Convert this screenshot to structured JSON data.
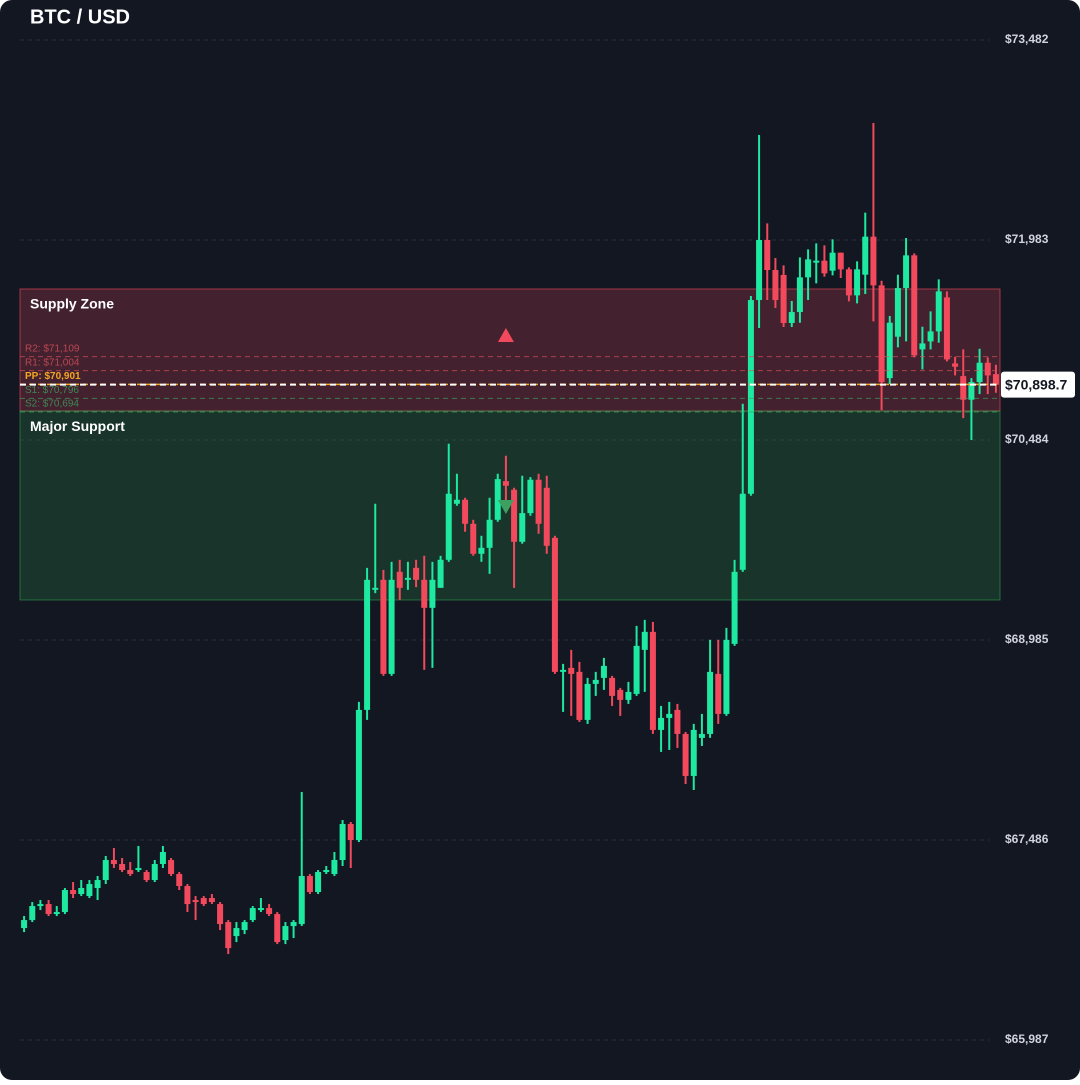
{
  "chart_data": {
    "type": "candlestick",
    "title": "BTC / USD",
    "categories": [
      null,
      null,
      null,
      null,
      null,
      null,
      null,
      null,
      null,
      null,
      null,
      null,
      null,
      null,
      null,
      null,
      null,
      null,
      null,
      null,
      null,
      null,
      null,
      null,
      null,
      null,
      null,
      null,
      null,
      null,
      null,
      null,
      null,
      null,
      null,
      null,
      null,
      null,
      null,
      null,
      null,
      null,
      null,
      null,
      null,
      null,
      null,
      null,
      null,
      null,
      null,
      null,
      null,
      null,
      null,
      null,
      null,
      null,
      null,
      null,
      null,
      null,
      null,
      null,
      null,
      null,
      null,
      null,
      null,
      null,
      null,
      null,
      null,
      null,
      null,
      null,
      null,
      null,
      null,
      null,
      null,
      null,
      null,
      null,
      null,
      null,
      null,
      null,
      null,
      null,
      null,
      null,
      null,
      null,
      null,
      null,
      null,
      null,
      null,
      null,
      null,
      null,
      null,
      null,
      null,
      null,
      null,
      null,
      null,
      null,
      null,
      null,
      null,
      null,
      null,
      null,
      null,
      null,
      null,
      null
    ],
    "open": [
      66826,
      66886,
      66991,
      67006,
      66931,
      66946,
      67111,
      67081,
      67066,
      67126,
      67186,
      67336,
      67306,
      67261,
      67261,
      67246,
      67186,
      67306,
      67336,
      67231,
      67141,
      67036,
      67051,
      67051,
      67006,
      66871,
      66766,
      66811,
      66886,
      66961,
      66976,
      66931,
      66736,
      66841,
      66856,
      67216,
      67096,
      67246,
      67231,
      67336,
      67606,
      67486,
      68461,
      69361,
      69436,
      68731,
      69496,
      69436,
      69526,
      69436,
      69226,
      69376,
      69586,
      70006,
      70036,
      69856,
      69631,
      69676,
      69886,
      70176,
      70111,
      69721,
      69936,
      70186,
      70126,
      69751,
      68746,
      68776,
      68746,
      68386,
      68656,
      68701,
      68701,
      68611,
      68536,
      68581,
      68911,
      69046,
      68311,
      68401,
      68461,
      68281,
      67966,
      68251,
      68281,
      68731,
      68431,
      68956,
      69511,
      70081,
      71533,
      71983,
      71758,
      71721,
      71361,
      71443,
      71703,
      71813,
      71828,
      71753,
      71888,
      71763,
      71568,
      71723,
      72008,
      71643,
      70948,
      71258,
      71623,
      71868,
      71163,
      71223,
      71298,
      71553,
      71058,
      70963,
      70786,
      70918,
      71063,
      70978
    ],
    "high": [
      66916,
      67021,
      67036,
      67036,
      66991,
      67126,
      67171,
      67186,
      67186,
      67216,
      67366,
      67426,
      67351,
      67321,
      67441,
      67261,
      67336,
      67441,
      67351,
      67246,
      67156,
      67066,
      67066,
      67081,
      67021,
      66886,
      66871,
      66886,
      66991,
      67051,
      67006,
      66946,
      66871,
      66886,
      67846,
      67231,
      67261,
      67291,
      67396,
      67636,
      67621,
      68521,
      69526,
      70006,
      69511,
      69571,
      69586,
      69571,
      69586,
      69616,
      69571,
      69616,
      70456,
      70231,
      70051,
      69886,
      69766,
      70051,
      70231,
      70366,
      70126,
      70216,
      70206,
      70231,
      70216,
      69766,
      68806,
      68911,
      68821,
      68701,
      68746,
      68851,
      68716,
      68626,
      68671,
      69091,
      69136,
      69121,
      68491,
      68521,
      68506,
      68296,
      68356,
      68431,
      68986,
      68986,
      69076,
      69586,
      70756,
      71563,
      72770,
      72108,
      71848,
      71793,
      71526,
      71853,
      71913,
      71958,
      71943,
      71988,
      71888,
      71778,
      71823,
      72188,
      72860,
      71678,
      71413,
      71723,
      71998,
      71883,
      71333,
      71448,
      71688,
      71598,
      71108,
      71163,
      70948,
      71168,
      71103,
      71048
    ],
    "low": [
      66796,
      66871,
      66961,
      66916,
      66916,
      66931,
      67051,
      67066,
      67051,
      67036,
      67156,
      67276,
      67246,
      67216,
      67246,
      67171,
      67171,
      67276,
      67216,
      67111,
      66946,
      66886,
      66991,
      67006,
      66811,
      66631,
      66721,
      66781,
      66871,
      66946,
      66916,
      66706,
      66706,
      66751,
      66841,
      67081,
      67081,
      67231,
      67216,
      67291,
      67276,
      67471,
      68386,
      69336,
      68716,
      68716,
      69286,
      69361,
      69381,
      68761,
      68776,
      69376,
      69571,
      69991,
      69796,
      69616,
      69571,
      69481,
      69871,
      69946,
      69376,
      69706,
      69916,
      69781,
      69631,
      68731,
      68446,
      68416,
      68371,
      68356,
      68566,
      68611,
      68491,
      68416,
      68506,
      68566,
      68596,
      68281,
      68146,
      68161,
      68176,
      67906,
      67861,
      68191,
      68251,
      68356,
      68416,
      68941,
      69496,
      70066,
      71323,
      71533,
      71473,
      71331,
      71331,
      71363,
      71533,
      71658,
      71708,
      71718,
      71698,
      71523,
      71508,
      71578,
      71373,
      70708,
      70903,
      71178,
      71223,
      71103,
      71013,
      71163,
      71213,
      71073,
      70968,
      70648,
      70484,
      70828,
      70828,
      70838
    ],
    "close": [
      66886,
      66991,
      67006,
      66931,
      66946,
      67111,
      67081,
      67126,
      67156,
      67186,
      67336,
      67306,
      67261,
      67231,
      67276,
      67186,
      67306,
      67396,
      67231,
      67141,
      67006,
      67021,
      67006,
      67021,
      66856,
      66676,
      66826,
      66871,
      66976,
      66976,
      66931,
      66721,
      66841,
      66871,
      67216,
      67096,
      67246,
      67261,
      67336,
      67606,
      67486,
      68461,
      69436,
      69376,
      68731,
      69436,
      69376,
      69451,
      69436,
      69226,
      69436,
      69586,
      70081,
      70036,
      69856,
      69631,
      69676,
      69886,
      70191,
      70141,
      69721,
      69936,
      70186,
      69856,
      69691,
      68746,
      68761,
      68731,
      68386,
      68656,
      68686,
      68791,
      68566,
      68536,
      68596,
      68941,
      69046,
      68311,
      68401,
      68431,
      68281,
      67966,
      68311,
      68281,
      68746,
      68431,
      68986,
      69496,
      70081,
      71533,
      71983,
      71758,
      71533,
      71361,
      71443,
      71703,
      71838,
      71828,
      71733,
      71888,
      71763,
      71568,
      71763,
      72008,
      71643,
      70918,
      71363,
      71623,
      71868,
      71118,
      71208,
      71298,
      71598,
      71088,
      71033,
      70786,
      70918,
      71063,
      70968,
      70898
    ],
    "up_color": "#1de9a0",
    "down_color": "#f2495c",
    "ylim": [
      65987,
      73482
    ],
    "yticks": [
      {
        "value": 65987,
        "label": "$65,987"
      },
      {
        "value": 67486,
        "label": "$67,486"
      },
      {
        "value": 68985,
        "label": "$68,985"
      },
      {
        "value": 70484,
        "label": "$70,484"
      },
      {
        "value": 71983,
        "label": "$71,983"
      },
      {
        "value": 73482,
        "label": "$73,482"
      }
    ],
    "grid": true,
    "zones": [
      {
        "label": "Supply Zone",
        "top": 71616,
        "bottom": 70701,
        "color": "#f2495c"
      },
      {
        "label": "Major Support",
        "top": 70701,
        "bottom": 69285,
        "color": "#2e9e4f"
      }
    ],
    "pivots": [
      {
        "name": "R2",
        "value": 71109,
        "label": "R2: $71,109",
        "color": "#d9505d"
      },
      {
        "name": "R1",
        "value": 71004,
        "label": "R1: $71,004",
        "color": "#d9505d"
      },
      {
        "name": "PP",
        "value": 70901,
        "label": "PP: $70,901",
        "color": "#f5a623"
      },
      {
        "name": "S1",
        "value": 70796,
        "label": "S1: $70,796",
        "color": "#3ea060"
      },
      {
        "name": "S2",
        "value": 70694,
        "label": "S2: $70,694",
        "color": "#3ea060"
      }
    ],
    "markers": [
      {
        "index": 59,
        "value": 71271,
        "shape": "up",
        "color": "#f2495c"
      },
      {
        "index": 59,
        "value": 69982,
        "shape": "down",
        "color": "#3ea060"
      }
    ],
    "last_price": {
      "value": 70898.7,
      "label": "$70,898.7"
    }
  }
}
